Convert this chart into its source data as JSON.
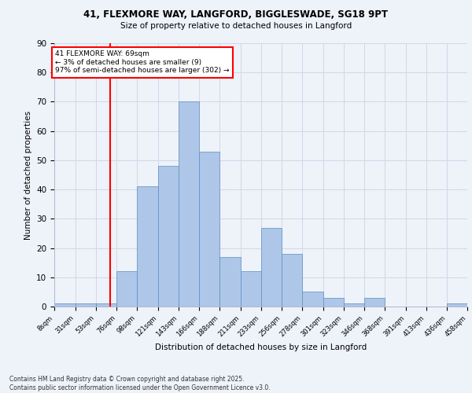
{
  "title1": "41, FLEXMORE WAY, LANGFORD, BIGGLESWADE, SG18 9PT",
  "title2": "Size of property relative to detached houses in Langford",
  "xlabel": "Distribution of detached houses by size in Langford",
  "ylabel": "Number of detached properties",
  "bin_labels": [
    "8sqm",
    "31sqm",
    "53sqm",
    "76sqm",
    "98sqm",
    "121sqm",
    "143sqm",
    "166sqm",
    "188sqm",
    "211sqm",
    "233sqm",
    "256sqm",
    "278sqm",
    "301sqm",
    "323sqm",
    "346sqm",
    "368sqm",
    "391sqm",
    "413sqm",
    "436sqm",
    "458sqm"
  ],
  "bar_heights": [
    1,
    1,
    1,
    12,
    41,
    48,
    70,
    53,
    17,
    12,
    27,
    18,
    5,
    3,
    1,
    3,
    0,
    0,
    0,
    1,
    0
  ],
  "bar_color": "#aec6e8",
  "bar_edge_color": "#5a8fc0",
  "grid_color": "#d0d8e8",
  "background_color": "#eef2f9",
  "vline_x": 69,
  "vline_color": "red",
  "annotation_text": "41 FLEXMORE WAY: 69sqm\n← 3% of detached houses are smaller (9)\n97% of semi-detached houses are larger (302) →",
  "annotation_box_color": "white",
  "annotation_box_edge": "red",
  "ylim": [
    0,
    90
  ],
  "yticks": [
    0,
    10,
    20,
    30,
    40,
    50,
    60,
    70,
    80,
    90
  ],
  "footer_text": "Contains HM Land Registry data © Crown copyright and database right 2025.\nContains public sector information licensed under the Open Government Licence v3.0.",
  "bin_edges": [
    8,
    31,
    53,
    76,
    98,
    121,
    143,
    166,
    188,
    211,
    233,
    256,
    278,
    301,
    323,
    346,
    368,
    391,
    413,
    436,
    458
  ]
}
